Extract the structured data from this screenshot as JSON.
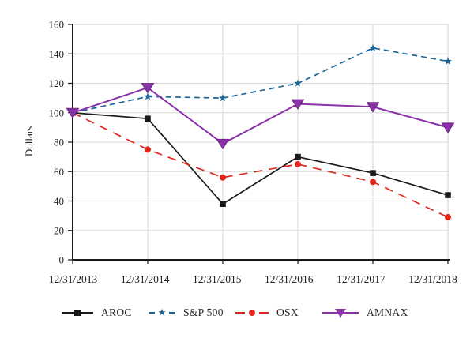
{
  "chart_data": {
    "type": "line",
    "title": "",
    "xlabel": "",
    "ylabel": "Dollars",
    "ylim": [
      0,
      160
    ],
    "yticks": [
      0,
      20,
      40,
      60,
      80,
      100,
      120,
      140,
      160
    ],
    "grid": true,
    "legend_position": "bottom",
    "categories": [
      "12/31/2013",
      "12/31/2014",
      "12/31/2015",
      "12/31/2016",
      "12/31/2017",
      "12/31/2018"
    ],
    "series": [
      {
        "name": "AROC",
        "color": "#1a1a1a",
        "line": "solid",
        "marker": "square",
        "values": [
          100,
          96,
          38,
          70,
          59,
          44
        ]
      },
      {
        "name": "S&P 500",
        "color": "#1a6496",
        "line": "dashed",
        "marker": "star",
        "values": [
          100,
          111,
          110,
          120,
          144,
          135
        ]
      },
      {
        "name": "OSX",
        "color": "#e2281e",
        "line": "dashed",
        "marker": "circle",
        "values": [
          100,
          75,
          56,
          65,
          53,
          29
        ]
      },
      {
        "name": "AMNAX",
        "color": "#8b32a9",
        "line": "solid",
        "marker": "triangle-down",
        "values": [
          100,
          117,
          79,
          106,
          104,
          90
        ]
      }
    ],
    "colors": {
      "gridline": "#d7d7d7",
      "axis": "#1a1a1a",
      "tick_text": "#222222"
    }
  }
}
